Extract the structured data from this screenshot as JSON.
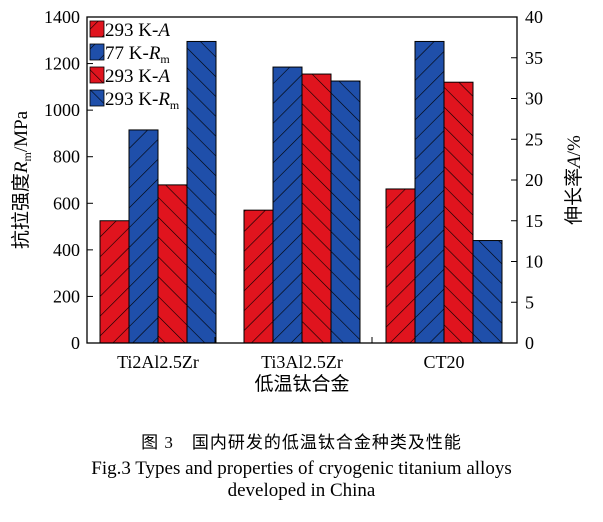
{
  "chart_data": {
    "type": "bar",
    "categories": [
      "Ti2Al2.5Zr",
      "Ti3Al2.5Zr",
      "CT20"
    ],
    "xlabel": "低温钛合金",
    "ylabel_left": {
      "text": "抗拉强度",
      "var": "R",
      "sub": "m",
      "unit": "/MPa"
    },
    "ylabel_right": {
      "text": "伸长率",
      "var": "A",
      "unit": "/%"
    },
    "ylim_left": [
      0,
      1400
    ],
    "yticks_left": [
      0,
      200,
      400,
      600,
      800,
      1000,
      1200,
      1400
    ],
    "ylim_right": [
      0,
      40
    ],
    "yticks_right": [
      0,
      5,
      10,
      15,
      20,
      25,
      30,
      35,
      40
    ],
    "grid": false,
    "legend_position": "top-left",
    "series": [
      {
        "name": "293 K-A",
        "legend_main": "293 K-",
        "legend_var": "A",
        "legend_sub": "",
        "axis": "right",
        "color": "#e0141e",
        "hatch": "/",
        "values": [
          15.0,
          16.3,
          18.9
        ]
      },
      {
        "name": "77 K-Rm",
        "legend_main": "77 K-",
        "legend_var": "R",
        "legend_sub": "m",
        "axis": "left",
        "color": "#1f4faa",
        "hatch": "/",
        "values": [
          915,
          1185,
          1295
        ]
      },
      {
        "name": "293 K-A",
        "legend_main": "293 K-",
        "legend_var": "A",
        "legend_sub": "",
        "axis": "right",
        "color": "#e0141e",
        "hatch": "\\",
        "values": [
          19.4,
          33.0,
          32.0
        ]
      },
      {
        "name": "293 K-Rm",
        "legend_main": "293 K-",
        "legend_var": "R",
        "legend_sub": "m",
        "axis": "left",
        "color": "#1f4faa",
        "hatch": "\\",
        "values": [
          1295,
          1125,
          440
        ]
      }
    ]
  },
  "caption": {
    "cn": "图 3　国内研发的低温钛合金种类及性能",
    "en_line1": "Fig.3 Types and properties of cryogenic titanium alloys",
    "en_line2": "developed in China"
  }
}
